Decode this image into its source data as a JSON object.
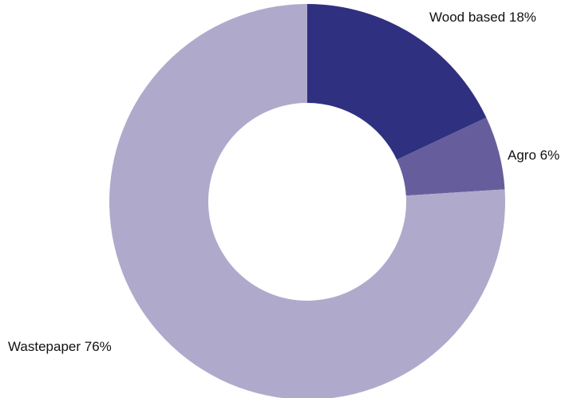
{
  "chart_data": {
    "type": "pie",
    "donut": true,
    "title": "",
    "slices": [
      {
        "label": "Wood based 18%",
        "name": "Wood based",
        "value": 18,
        "color": "#2f3080"
      },
      {
        "label": "Agro 6%",
        "name": "Agro",
        "value": 6,
        "color": "#665e9c"
      },
      {
        "label": "Wastepaper 76%",
        "name": "Wastepaper",
        "value": 76,
        "color": "#afaacb"
      }
    ],
    "start": "12 o'clock",
    "direction": "clockwise",
    "legend": "none (labels beside slices)"
  }
}
